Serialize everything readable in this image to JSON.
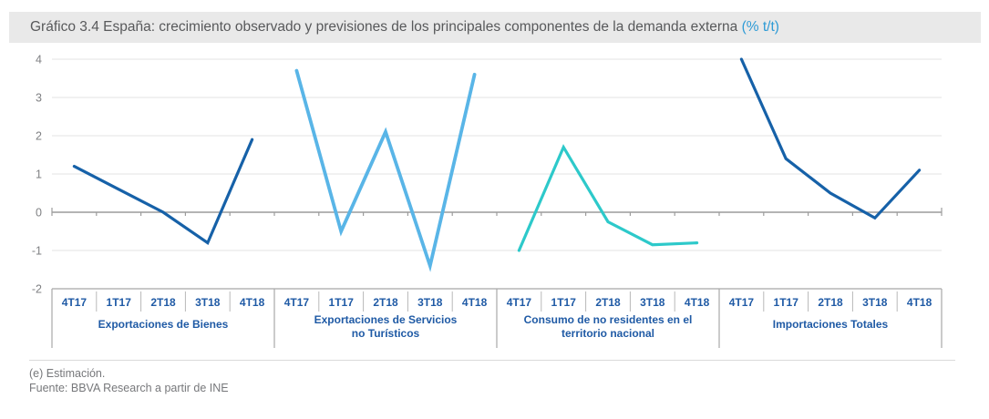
{
  "title": {
    "text": "Gráfico 3.4 España: crecimiento observado y previsiones de los principales componentes de la demanda externa",
    "accent": "(% t/t)"
  },
  "footer": {
    "note": "(e) Estimación.",
    "source": "Fuente: BBVA Research a partir de INE"
  },
  "colors": {
    "title_bar_bg": "#E9E9E9",
    "title_text": "#58595B",
    "accent": "#2E9BD6",
    "gridline": "#E3E3E3",
    "zero_axis": "#9C9C9C",
    "axis_text": "#7F8083",
    "table_border": "#A8A8A8",
    "quarter_separator": "#B8B8B8",
    "table_text": "#1F5AA5",
    "footer_text": "#77787B",
    "series_dark_blue": "#1661A8",
    "series_light_blue": "#59B5E7",
    "series_teal": "#2DC9CA"
  },
  "chart_data": {
    "type": "line",
    "categories": [
      "4T17",
      "1T17",
      "2T18",
      "3T18",
      "4T18"
    ],
    "y_ticks": [
      4,
      3,
      2,
      1,
      0,
      -1,
      -2
    ],
    "ylim": [
      -2,
      4
    ],
    "grid": true,
    "legend_position": "none",
    "xlabel": "",
    "ylabel": "",
    "series": [
      {
        "name": "Exportaciones de Bienes",
        "name_lines": [
          "Exportaciones de Bienes"
        ],
        "color_key": "series_dark_blue",
        "stroke_width": 3.2,
        "values": [
          1.2,
          0.6,
          0.0,
          -0.8,
          1.9
        ]
      },
      {
        "name": "Exportaciones de Servicios no Turísticos",
        "name_lines": [
          "Exportaciones de Servicios",
          "no Turísticos"
        ],
        "color_key": "series_light_blue",
        "stroke_width": 3.8,
        "values": [
          3.7,
          -0.5,
          2.1,
          -1.4,
          3.6
        ]
      },
      {
        "name": "Consumo de no residentes en el territorio nacional",
        "name_lines": [
          "Consumo de no residentes en el",
          "territorio nacional"
        ],
        "color_key": "series_teal",
        "stroke_width": 3.2,
        "values": [
          -1.0,
          1.7,
          -0.25,
          -0.85,
          -0.8
        ]
      },
      {
        "name": "Importaciones Totales",
        "name_lines": [
          "Importaciones Totales"
        ],
        "color_key": "series_dark_blue",
        "stroke_width": 3.2,
        "values": [
          4.0,
          1.4,
          0.5,
          -0.15,
          1.1
        ]
      }
    ]
  }
}
